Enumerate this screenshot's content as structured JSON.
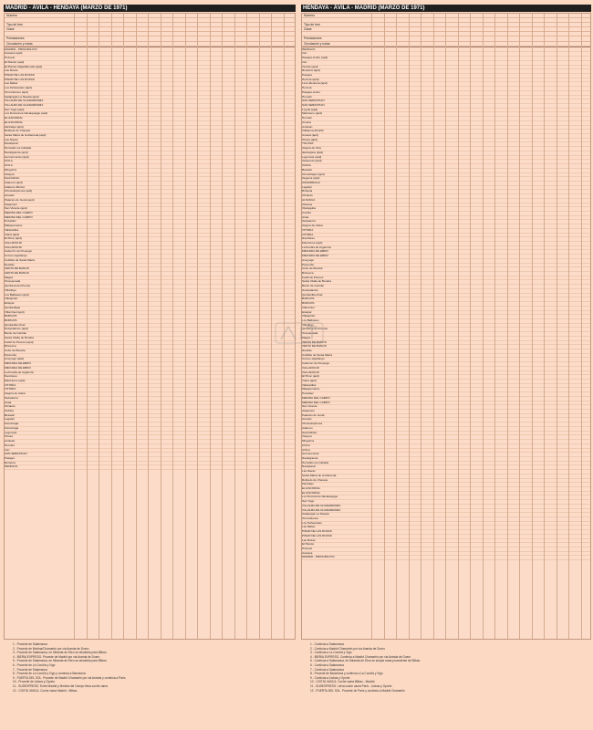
{
  "left_table": {
    "title": "MADRID - ÁVILA - HENDAYA (MARZO DE 1971)",
    "meta_labels": [
      "Número",
      "",
      "Tipo de tren",
      "Clase",
      "",
      "Prestaciones",
      "Circulación y notas"
    ],
    "stations": [
      "MADRID - PRÍNCIPE PÍO",
      "Aravaca (apd)",
      "Pozuelo",
      "El Plantío (apd)",
      "El Plantío-Majadahonda (apd)",
      "Las Rozas",
      "PINAR DE LAS ROZAS",
      "PINAR DE LAS ROZAS",
      "Las Matas",
      "Los Peñascales (apd)",
      "Torrelodones (apd)",
      "Galapagar-La Navata (apd)",
      "VILLALBA DE GUADARRAMA",
      "VILLALBA DE GUADARRAMA",
      "San Yago (apd)",
      "Los Dominicos-Navalquejigo (apd)",
      "EL ESCORIAL",
      "EL ESCORIAL",
      "Zarzalejo (apd)",
      "Robledo de Chavela",
      "Santa María de la Alameda (apd)",
      "Las Navas",
      "Navalperal",
      "Herradón-La Cañada",
      "Navalgrande (apd)",
      "Guimorcondo (apd)",
      "ÁVILA",
      "ÁVILA",
      "Mingorría",
      "Velayos",
      "Sanchidrián",
      "Adanero (apd)",
      "Adanero-Muñes",
      "Ortola-Espinosa (apd)",
      "Arévalo",
      "Palacios de Goda (apd)",
      "Ataquines",
      "San Vicente (apd)",
      "MEDINA DEL CAMPO",
      "MEDINA DEL CAMPO",
      "Pozaldez",
      "Matapozuelos",
      "Valdestillas",
      "Viana (apd)",
      "El Pinar (apd)",
      "VALLADOLID",
      "VALLADOLID",
      "Cabezón de Pisuerga",
      "Corcos-Aguilarejo",
      "Cubillas de Santa Marta",
      "Dueñas",
      "VENTA DE BAÑOS",
      "VENTA DE BAÑOS",
      "Magaz",
      "Torquemada",
      "Quintana del Puente",
      "Villodrigo",
      "Los Balbases (apd)",
      "Villaquirán",
      "Estépar",
      "Quintanilleja",
      "Villarrmiel (apd)",
      "BURGOS",
      "BURGOS",
      "Quintanilla-Vivar",
      "Sotopalacios (apd)",
      "Barrio de Cebrián",
      "Santa Olalla de Bureba",
      "Castil de Peones (apd)",
      "Briviesca",
      "Cubo de Bureba",
      "Pancorbo",
      "Ameyugo (apd)",
      "MIRANDA DE EBRO",
      "MIRANDA DE EBRO",
      "La Puebla de Arganzón",
      "Nanclares",
      "Manzanos (apd)",
      "VITORIA",
      "VITORIA",
      "Alegría de Álava",
      "Salvatierra",
      "Araia",
      "Otzaurte",
      "Ordizia",
      "Beasain",
      "Legazpi",
      "Zumárraga",
      "Zumarraga",
      "Legorreta",
      "Tolosa",
      "Andoain",
      "Hernani",
      "Irún",
      "SAN SEBASTIÁN",
      "Pasajes",
      "Rentería",
      "HENDAYA"
    ]
  },
  "right_table": {
    "title": "HENDAYA - ÁVILA - MADRID (MARZO DE 1971)",
    "meta_labels": [
      "Número",
      "",
      "Tipo de tren",
      "Clase",
      "",
      "Prestaciones",
      "Circulación y notas"
    ],
    "stations": [
      "HENDAYA",
      "Irún",
      "Pasajes-Colón (apd)",
      "Irún",
      "Ventas (apd)",
      "Rentería (apd)",
      "Pasajes",
      "Herrera (apd)",
      "Lezo-Rentería (apd)",
      "Herrera",
      "Pasajes-Antxo",
      "Hernani",
      "SAN SEBASTIÁN",
      "SAN SEBASTIÁN",
      "Loyola (apd)",
      "Martutene (apd)",
      "Hernani",
      "Urnieta",
      "Andoain",
      "Villabona-Zizurkil",
      "Anoeta (apd)",
      "Tolosa (apd)",
      "TOLOSA",
      "Alegría de Oria",
      "Ikaztegieta (apd)",
      "Legorreta (apd)",
      "Itsasondo (apd)",
      "Ordizia",
      "Beasain",
      "Ormaiztegui (apd)",
      "Zegama (apd)",
      "ZUMARRAGA",
      "Legazpi",
      "Brinkola",
      "Otzaurte",
      "ALSASUA",
      "Alsasua",
      "Olazagutía",
      "Ciordia",
      "Araia",
      "Salvatierra",
      "Alegría de Álava",
      "VITORIA",
      "VITORIA",
      "Nanclares",
      "Manzanos (apd)",
      "La Puebla de Arganzón",
      "MIRANDA DE EBRO",
      "MIRANDA DE EBRO",
      "Ameyugo",
      "Pancorbo",
      "Cubo de Bureba",
      "Briviesca",
      "Castil de Peones",
      "Santa Olalla de Bureba",
      "Barrio de Cebrián",
      "Sotopalacios",
      "Quintanilla-Vivar",
      "BURGOS",
      "BURGOS",
      "Villarrmiel",
      "Estépar",
      "Villaquirán",
      "Los Balbases",
      "Villodrigo",
      "Quintana del Puente",
      "Torquemada",
      "Magaz",
      "VENTA DE BAÑOS",
      "VENTA DE BAÑOS",
      "Dueñas",
      "Cubillas de Santa Marta",
      "Corcos-Aguilarejo",
      "Cabezón de Pisuerga",
      "VALLADOLID",
      "VALLADOLID",
      "El Pinar (apd)",
      "Viana (apd)",
      "Valdestillas",
      "Matapozuelos",
      "Pozaldez",
      "MEDINA DEL CAMPO",
      "MEDINA DEL CAMPO",
      "San Vicente",
      "Ataquines",
      "Palacios de Goda",
      "Arévalo",
      "Ortola-Espinosa",
      "Adanero",
      "Sanchidrián",
      "Velayos",
      "Mingorría",
      "ÁVILA",
      "ÁVILA",
      "Guimorcondo",
      "Navalgrande",
      "Herradón-La Cañada",
      "Navalperal",
      "Las Navas",
      "Santa María de la Alameda",
      "Robledo de Chavela",
      "Zarzalejo",
      "EL ESCORIAL",
      "EL ESCORIAL",
      "Los Dominicos-Navalquejigo",
      "San Yago",
      "VILLALBA DE GUADARRAMA",
      "VILLALBA DE GUADARRAMA",
      "Galapagar-La Navata",
      "Torrelodones",
      "Los Peñascales",
      "Las Matas",
      "PINAR DE LAS ROZAS",
      "PINAR DE LAS ROZAS",
      "Las Rozas",
      "El Plantío",
      "Pozuelo",
      "Aravaca",
      "MADRID - PRÍNCIPE PÍO"
    ]
  },
  "notes_left": [
    "1 - Procede de Salamanca",
    "2 - Procede de Medina/Chamartín por via Aranda de Duero",
    "3 - Procede de Salamanca, en Miranda de Ebro se desdobla para Bilbao",
    "4 - IBERIA EXPRESO. Procede de Madrid por via Aranda de Duero",
    "5 - Procede de Salamanca, en Miranda de Ebro se desdobla para Bilbao",
    "6 - Procede de La Coruña y Vigo",
    "7 - Procede de Salamanca",
    "8 - Procede de La Coruña y Vigo y continúa a Barcelona",
    "9 - PUERTA DEL SOL. Procede de Madrid Chamartín por via Aranda y continúa a París",
    "10 - Procede de Lisboa y Oporto",
    "11 - SUDEXPRESO. Entre Madrid y Medina del Campo lleva coche cama",
    "12 - COSTA VASCA. Coche cama Madrid - Bilbao"
  ],
  "notes_right": [
    "1 - Continúa a Salamanca",
    "2 - Continúa a Madrid Chamartín por via Aranda de Duero",
    "3 - Continúa a La Coruña y Vigo",
    "4 - IBERIA EXPRESO. Continúa a Madrid Chamartín por via Aranda de Duero",
    "5 - Continúa a Salamanca, en Miranda de Ebro se acopla rama procedente de Bilbao",
    "6 - Continúa a Salamanca",
    "7 - Continúa a Salamanca",
    "8 - Procede de Barcelona y continúa a La Coruña y Vigo",
    "9 - Continúa a Lisboa y Oporto",
    "10 - COSTA VASCA. Coche cama Bilbao - Madrid",
    "11 - SUDEXPRESO. Lleva coche cama París - Lisboa y Oporto",
    "12 - PUERTA DEL SOL. Procede de París y continúa a Madrid Chamartín"
  ]
}
